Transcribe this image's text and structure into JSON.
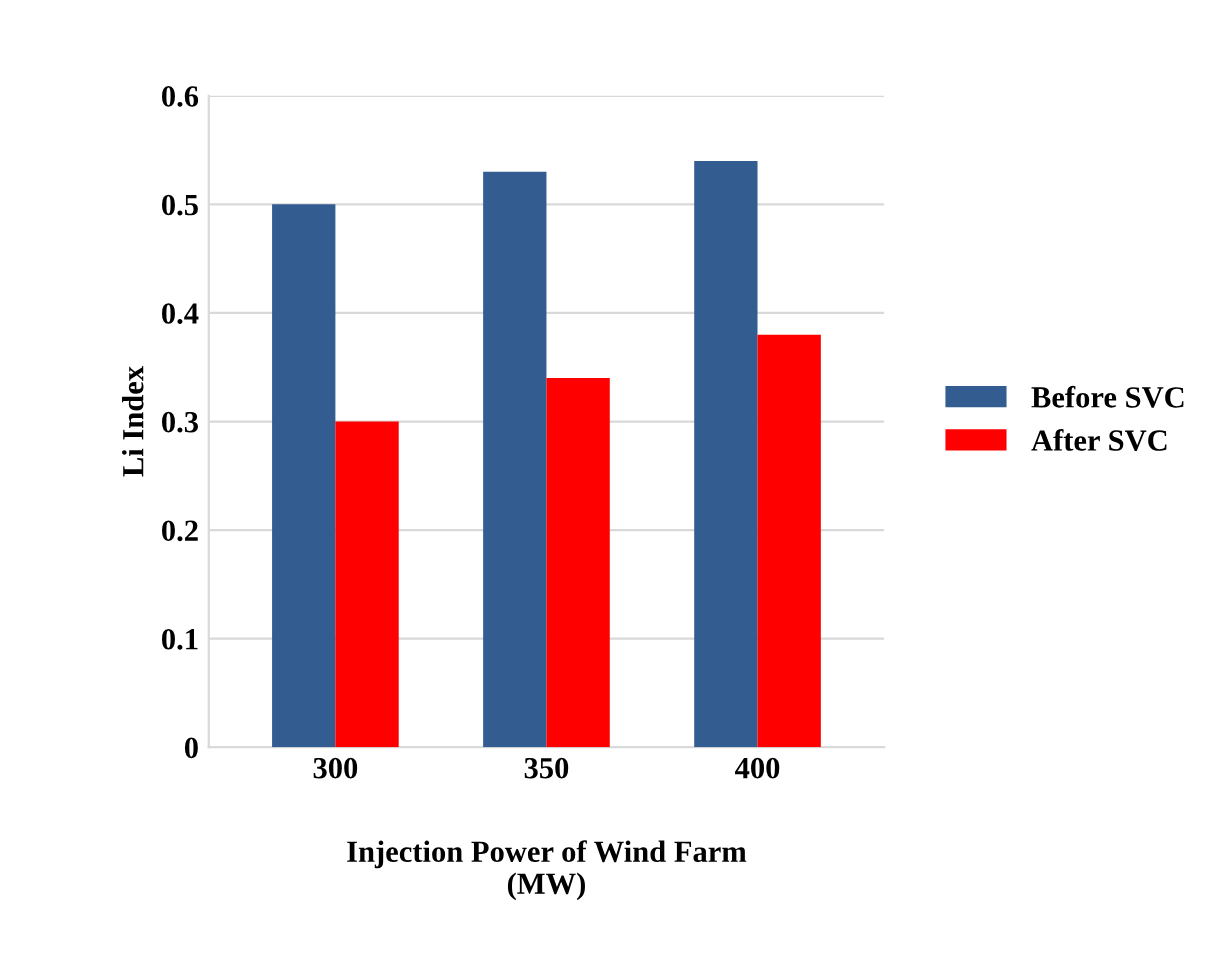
{
  "chart_data": {
    "type": "bar",
    "xlabel": "Injection Power of Wind Farm\n(MW)",
    "ylabel": "Li Index",
    "categories": [
      "300",
      "350",
      "400"
    ],
    "series": [
      {
        "name": "Before SVC",
        "color": "#335c91",
        "values": [
          0.5,
          0.53,
          0.54
        ]
      },
      {
        "name": "After SVC",
        "color": "#ff0000",
        "values": [
          0.3,
          0.34,
          0.38
        ]
      }
    ],
    "ylim": [
      0,
      0.6
    ],
    "yticks": [
      0,
      0.1,
      0.2,
      0.3,
      0.4,
      0.5,
      0.6
    ],
    "grid": "y",
    "legend": "right"
  }
}
